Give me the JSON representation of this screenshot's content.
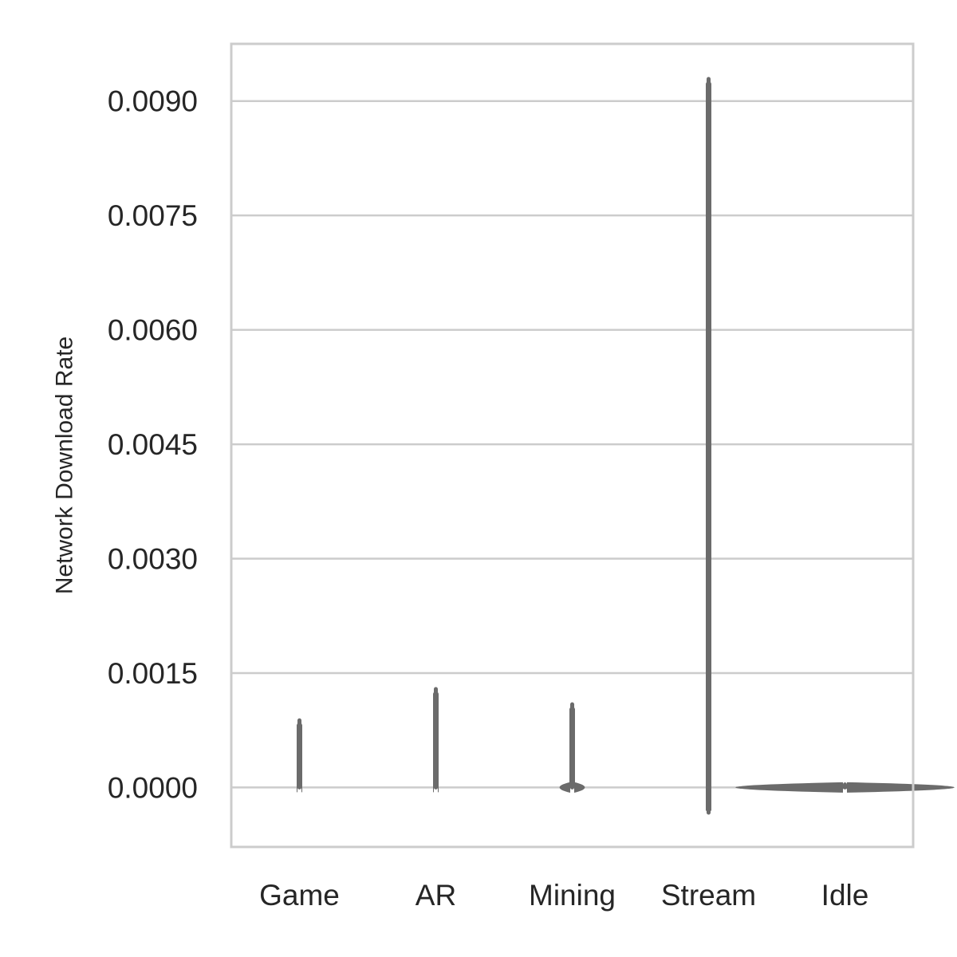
{
  "chart_data": {
    "type": "violin",
    "title": "",
    "xlabel": "",
    "ylabel": "Network Download Rate",
    "categories": [
      "Game",
      "AR",
      "Mining",
      "Stream",
      "Idle"
    ],
    "y_ticks": [
      "0.0000",
      "0.0015",
      "0.0030",
      "0.0045",
      "0.0060",
      "0.0075",
      "0.0090"
    ],
    "ylim": [
      -0.00078,
      0.00975
    ],
    "grid": "y",
    "series": [
      {
        "category": "Game",
        "min": 0.0,
        "max": 0.00088,
        "max_width": 0.02
      },
      {
        "category": "AR",
        "min": 0.0,
        "max": 0.00129,
        "max_width": 0.02
      },
      {
        "category": "Mining",
        "min": 0.0,
        "max": 0.00109,
        "max_width": 0.18
      },
      {
        "category": "Stream",
        "min": -0.00033,
        "max": 0.00929,
        "max_width": 0.02
      },
      {
        "category": "Idle",
        "min": 0.0,
        "max": 4e-05,
        "max_width": 1.6
      }
    ],
    "colors": {
      "violin": "#6b6b6b",
      "grid": "#cccccc",
      "frame": "#cccccc",
      "text": "#262626"
    }
  }
}
